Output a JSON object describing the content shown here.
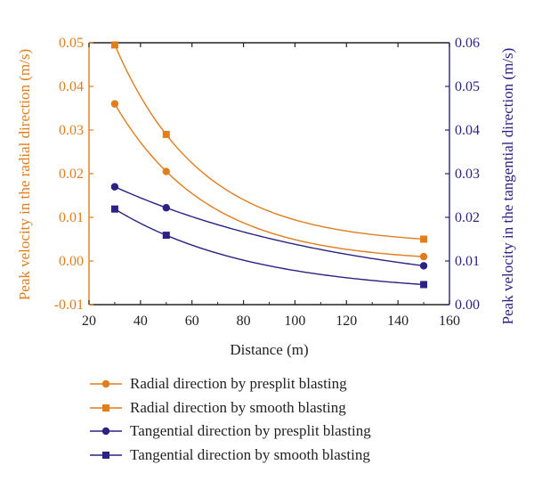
{
  "chart_data": {
    "type": "line",
    "xlabel": "Distance (m)",
    "ylabel_left": "Peak velocity in the radial direction (m/s)",
    "ylabel_right": "Peak velocity in the tangential direction (m/s)",
    "xlim": [
      20,
      160
    ],
    "x_ticks": [
      "20",
      "40",
      "60",
      "80",
      "100",
      "120",
      "140",
      "160"
    ],
    "ylim_left": [
      -0.01,
      0.05
    ],
    "y_ticks_left": [
      "-0.01",
      "0.00",
      "0.01",
      "0.02",
      "0.03",
      "0.04",
      "0.05"
    ],
    "ylim_right": [
      0.0,
      0.06
    ],
    "y_ticks_right": [
      "0.00",
      "0.01",
      "0.02",
      "0.03",
      "0.04",
      "0.05",
      "0.06"
    ],
    "grid": false,
    "legend_position": "bottom",
    "colors": {
      "radial": "#e07d1c",
      "tangential": "#2b2283",
      "axis": "#222222"
    },
    "series": [
      {
        "name": "Radial direction by presplit blasting",
        "axis": "left",
        "marker": "circle",
        "color": "#e07d1c",
        "x": [
          30,
          50,
          150
        ],
        "y": [
          0.036,
          0.0205,
          0.001
        ]
      },
      {
        "name": "Radial direction by smooth blasting",
        "axis": "left",
        "marker": "square",
        "color": "#e07d1c",
        "x": [
          30,
          50,
          150
        ],
        "y": [
          0.0495,
          0.029,
          0.005
        ]
      },
      {
        "name": "Tangential direction by presplit blasting",
        "axis": "right",
        "marker": "circle",
        "color": "#2b2283",
        "x": [
          30,
          50,
          150
        ],
        "y": [
          0.027,
          0.0222,
          0.0089
        ]
      },
      {
        "name": "Tangential direction by smooth blasting",
        "axis": "right",
        "marker": "square",
        "color": "#2b2283",
        "x": [
          30,
          50,
          150
        ],
        "y": [
          0.0219,
          0.0159,
          0.0046
        ]
      }
    ]
  }
}
